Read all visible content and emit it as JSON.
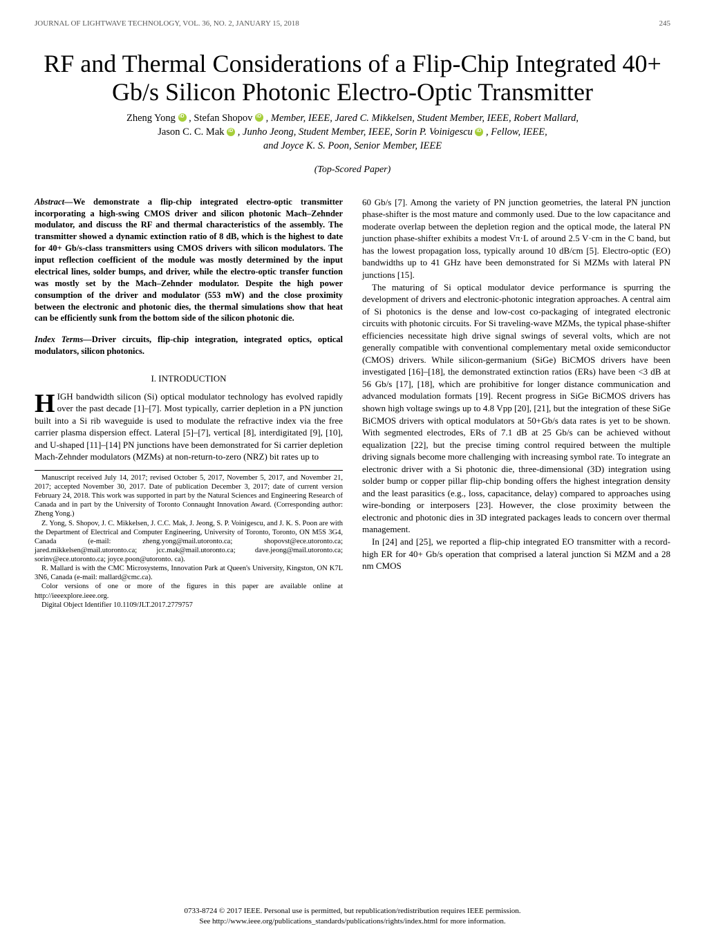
{
  "header": {
    "journal": "JOURNAL OF LIGHTWAVE TECHNOLOGY, VOL. 36, NO. 2, JANUARY 15, 2018",
    "page": "245"
  },
  "title": "RF and Thermal Considerations of a Flip-Chip Integrated 40+ Gb/s Silicon Photonic Electro-Optic Transmitter",
  "authors_line1_a": "Zheng Yong",
  "authors_line1_b": ", Stefan Shopov",
  "authors_line1_c": ", Member, IEEE, Jared C. Mikkelsen, Student Member, IEEE, Robert Mallard,",
  "authors_line2_a": "Jason C. C. Mak",
  "authors_line2_b": ", Junho Jeong, Student Member, IEEE, Sorin P. Voinigescu",
  "authors_line2_c": ", Fellow, IEEE,",
  "authors_line3": "and Joyce K. S. Poon, Senior Member, IEEE",
  "paper_tag": "(Top-Scored Paper)",
  "abstract": "We demonstrate a flip-chip integrated electro-optic transmitter incorporating a high-swing CMOS driver and silicon photonic Mach–Zehnder modulator, and discuss the RF and thermal characteristics of the assembly. The transmitter showed a dynamic extinction ratio of 8 dB, which is the highest to date for 40+ Gb/s-class transmitters using CMOS drivers with silicon modulators. The input reflection coefficient of the module was mostly determined by the input electrical lines, solder bumps, and driver, while the electro-optic transfer function was mostly set by the Mach–Zehnder modulator. Despite the high power consumption of the driver and modulator (553 mW) and the close proximity between the electronic and photonic dies, the thermal simulations show that heat can be efficiently sunk from the bottom side of the silicon photonic die.",
  "index_terms": "Driver circuits, flip-chip integration, integrated optics, optical modulators, silicon photonics.",
  "section1_heading": "I.  INTRODUCTION",
  "intro_first": "IGH bandwidth silicon (Si) optical modulator technology has evolved rapidly over the past decade [1]–[7]. Most typically, carrier depletion in a PN junction built into a Si rib waveguide is used to modulate the refractive index via the free carrier plasma dispersion effect. Lateral [5]–[7], vertical [8], interdigitated [9], [10], and U-shaped [11]–[14] PN junctions have been demonstrated for Si carrier depletion Mach-Zehnder modulators (MZMs) at non-return-to-zero (NRZ) bit rates up to",
  "col2_p1": "60 Gb/s [7]. Among the variety of PN junction geometries, the lateral PN junction phase-shifter is the most mature and commonly used. Due to the low capacitance and moderate overlap between the depletion region and the optical mode, the lateral PN junction phase-shifter exhibits a modest Vπ·L of around 2.5 V·cm in the C band, but has the lowest propagation loss, typically around 10 dB/cm [5]. Electro-optic (EO) bandwidths up to 41 GHz have been demonstrated for Si MZMs with lateral PN junctions [15].",
  "col2_p2": "The maturing of Si optical modulator device performance is spurring the development of drivers and electronic-photonic integration approaches. A central aim of Si photonics is the dense and low-cost co-packaging of integrated electronic circuits with photonic circuits. For Si traveling-wave MZMs, the typical phase-shifter efficiencies necessitate high drive signal swings of several volts, which are not generally compatible with conventional complementary metal oxide semiconductor (CMOS) drivers. While silicon-germanium (SiGe) BiCMOS drivers have been investigated [16]–[18], the demonstrated extinction ratios (ERs) have been <3 dB at 56 Gb/s [17], [18], which are prohibitive for longer distance communication and advanced modulation formats [19]. Recent progress in SiGe BiCMOS drivers has shown high voltage swings up to 4.8 Vpp [20], [21], but the integration of these SiGe BiCMOS drivers with optical modulators at 50+Gb/s data rates is yet to be shown. With segmented electrodes, ERs of 7.1 dB at 25 Gb/s can be achieved without equalization [22], but the precise timing control required between the multiple driving signals become more challenging with increasing symbol rate. To integrate an electronic driver with a Si photonic die, three-dimensional (3D) integration using solder bump or copper pillar flip-chip bonding offers the highest integration density and the least parasitics (e.g., loss, capacitance, delay) compared to approaches using wire-bonding or interposers [23]. However, the close proximity between the electronic and photonic dies in 3D integrated packages leads to concern over thermal management.",
  "col2_p3": "In [24] and [25], we reported a flip-chip integrated EO transmitter with a record-high ER for 40+ Gb/s operation that comprised a lateral junction Si MZM and a 28 nm CMOS",
  "footnote": {
    "p1": "Manuscript received July 14, 2017; revised October 5, 2017, November 5, 2017, and November 21, 2017; accepted November 30, 2017. Date of publication December 3, 2017; date of current version February 24, 2018. This work was supported in part by the Natural Sciences and Engineering Research of Canada and in part by the University of Toronto Connaught Innovation Award. (Corresponding author: Zheng Yong.)",
    "p2": "Z. Yong, S. Shopov, J. C. Mikkelsen, J. C.C. Mak, J. Jeong, S. P. Voinigescu, and J. K. S. Poon are with the Department of Electrical and Computer Engineering, University of Toronto, Toronto, ON M5S 3G4, Canada (e-mail: zheng.yong@mail.utoronto.ca; shopovst@ece.utoronto.ca; jared.mikkelsen@mail.utoronto.ca; jcc.mak@mail.utoronto.ca; dave.jeong@mail.utoronto.ca; sorinv@ece.utoronto.ca; joyce.poon@utoronto. ca).",
    "p3": "R. Mallard is with the CMC Microsystems, Innovation Park at Queen's University, Kingston, ON K7L 3N6, Canada (e-mail: mallard@cmc.ca).",
    "p4": "Color versions of one or more of the figures in this paper are available online at http://ieeexplore.ieee.org.",
    "p5": "Digital Object Identifier 10.1109/JLT.2017.2779757"
  },
  "footer": {
    "line1": "0733-8724 © 2017 IEEE. Personal use is permitted, but republication/redistribution requires IEEE permission.",
    "line2": "See http://www.ieee.org/publications_standards/publications/rights/index.html for more information."
  }
}
